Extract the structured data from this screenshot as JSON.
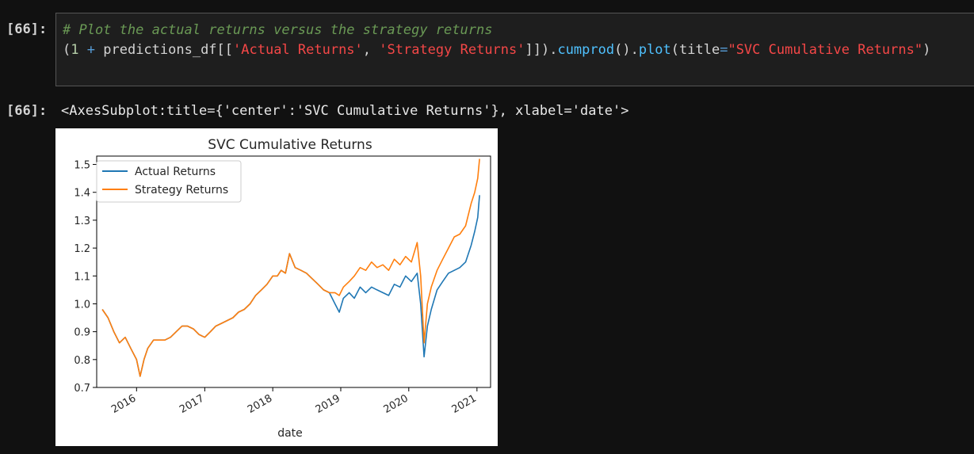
{
  "cell": {
    "in_prompt": "[66]:",
    "out_prompt": "[66]:",
    "code": {
      "comment": "# Plot the actual returns versus the strategy returns",
      "tok_open": "(",
      "tok_one": "1",
      "tok_plus": "+",
      "tok_var": "predictions_df[[",
      "tok_str1": "'Actual Returns'",
      "tok_comma": ", ",
      "tok_str2": "'Strategy Returns'",
      "tok_close": "]]).",
      "tok_cumprod": "cumprod",
      "tok_parens": "().",
      "tok_plot": "plot",
      "tok_title_kw": "(title",
      "tok_eq": "=",
      "tok_title_val": "\"SVC Cumulative Returns\"",
      "tok_end": ")"
    },
    "output_text": "<AxesSubplot:title={'center':'SVC Cumulative Returns'}, xlabel='date'>"
  },
  "chart_data": {
    "type": "line",
    "title": "SVC Cumulative Returns",
    "xlabel": "date",
    "ylabel": "",
    "x_ticks": [
      "2016",
      "2017",
      "2018",
      "2019",
      "2020",
      "2021"
    ],
    "y_ticks": [
      "0.7",
      "0.8",
      "0.9",
      "1.0",
      "1.1",
      "1.2",
      "1.3",
      "1.4",
      "1.5"
    ],
    "ylim": [
      0.7,
      1.53
    ],
    "xlim": [
      "2015-06-01",
      "2021-03-15"
    ],
    "grid": false,
    "legend_placement": "upper-left",
    "x": [
      "2015-07-01",
      "2015-08-01",
      "2015-09-01",
      "2015-10-01",
      "2015-11-01",
      "2015-12-01",
      "2016-01-01",
      "2016-01-20",
      "2016-02-10",
      "2016-03-01",
      "2016-04-01",
      "2016-05-01",
      "2016-06-01",
      "2016-07-01",
      "2016-08-01",
      "2016-09-01",
      "2016-10-01",
      "2016-11-01",
      "2016-12-01",
      "2017-01-01",
      "2017-02-01",
      "2017-03-01",
      "2017-04-01",
      "2017-05-01",
      "2017-06-01",
      "2017-07-01",
      "2017-08-01",
      "2017-09-01",
      "2017-10-01",
      "2017-11-01",
      "2017-12-01",
      "2018-01-01",
      "2018-01-26",
      "2018-02-15",
      "2018-03-10",
      "2018-04-01",
      "2018-05-01",
      "2018-06-01",
      "2018-07-01",
      "2018-08-01",
      "2018-09-01",
      "2018-10-01",
      "2018-11-01",
      "2018-12-01",
      "2018-12-24",
      "2019-01-15",
      "2019-02-15",
      "2019-03-15",
      "2019-04-15",
      "2019-05-15",
      "2019-06-15",
      "2019-07-15",
      "2019-08-15",
      "2019-09-15",
      "2019-10-15",
      "2019-11-15",
      "2019-12-15",
      "2020-01-15",
      "2020-02-15",
      "2020-03-05",
      "2020-03-23",
      "2020-04-10",
      "2020-05-01",
      "2020-06-01",
      "2020-07-01",
      "2020-08-01",
      "2020-09-01",
      "2020-10-01",
      "2020-11-01",
      "2020-12-01",
      "2020-12-20",
      "2021-01-05",
      "2021-01-15"
    ],
    "series": [
      {
        "name": "Actual Returns",
        "color": "#1f77b4",
        "values": [
          0.98,
          0.95,
          0.9,
          0.86,
          0.88,
          0.84,
          0.8,
          0.74,
          0.8,
          0.84,
          0.87,
          0.87,
          0.87,
          0.88,
          0.9,
          0.92,
          0.92,
          0.91,
          0.89,
          0.88,
          0.9,
          0.92,
          0.93,
          0.94,
          0.95,
          0.97,
          0.98,
          1.0,
          1.03,
          1.05,
          1.07,
          1.1,
          1.1,
          1.12,
          1.11,
          1.18,
          1.13,
          1.12,
          1.11,
          1.09,
          1.07,
          1.05,
          1.04,
          1.0,
          0.97,
          1.02,
          1.04,
          1.02,
          1.06,
          1.04,
          1.06,
          1.05,
          1.04,
          1.03,
          1.07,
          1.06,
          1.1,
          1.08,
          1.11,
          1.0,
          0.81,
          0.92,
          0.98,
          1.05,
          1.08,
          1.11,
          1.12,
          1.13,
          1.15,
          1.21,
          1.26,
          1.31,
          1.39
        ]
      },
      {
        "name": "Strategy Returns",
        "color": "#ff7f0e",
        "values": [
          0.98,
          0.95,
          0.9,
          0.86,
          0.88,
          0.84,
          0.8,
          0.74,
          0.8,
          0.84,
          0.87,
          0.87,
          0.87,
          0.88,
          0.9,
          0.92,
          0.92,
          0.91,
          0.89,
          0.88,
          0.9,
          0.92,
          0.93,
          0.94,
          0.95,
          0.97,
          0.98,
          1.0,
          1.03,
          1.05,
          1.07,
          1.1,
          1.1,
          1.12,
          1.11,
          1.18,
          1.13,
          1.12,
          1.11,
          1.09,
          1.07,
          1.05,
          1.04,
          1.04,
          1.03,
          1.06,
          1.08,
          1.1,
          1.13,
          1.12,
          1.15,
          1.13,
          1.14,
          1.12,
          1.16,
          1.14,
          1.17,
          1.15,
          1.22,
          1.1,
          0.86,
          1.0,
          1.06,
          1.12,
          1.16,
          1.2,
          1.24,
          1.25,
          1.28,
          1.36,
          1.4,
          1.45,
          1.52
        ]
      }
    ]
  }
}
